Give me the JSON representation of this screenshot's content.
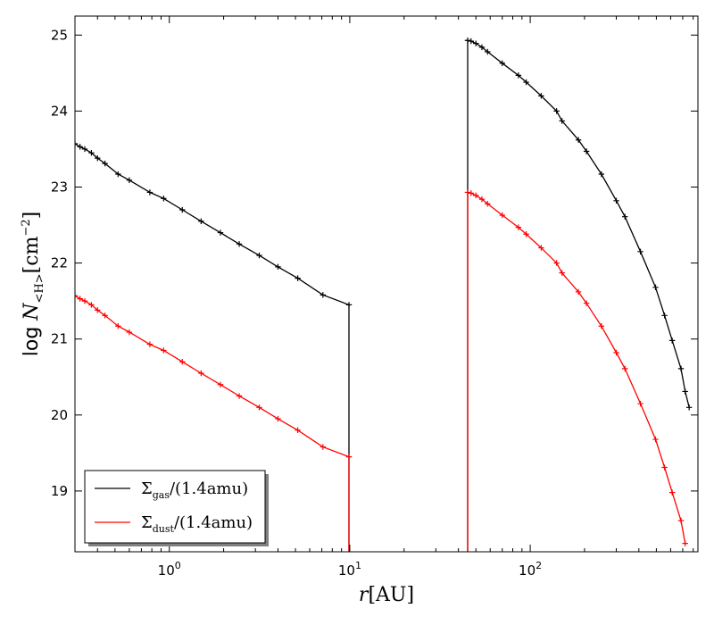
{
  "chart_data": {
    "type": "line",
    "title": "",
    "xlabel": "r[AU]",
    "ylabel": "log N<H>[cm^-2]",
    "xscale": "log",
    "xlim": [
      0.3,
      850
    ],
    "ylim": [
      18.2,
      25.25
    ],
    "x_ticks": [
      1,
      10,
      100
    ],
    "x_tick_labels": [
      "10^0",
      "10^1",
      "10^2"
    ],
    "y_ticks": [
      19,
      20,
      21,
      22,
      23,
      24,
      25
    ],
    "y_tick_labels": [
      "19",
      "20",
      "21",
      "22",
      "23",
      "24",
      "25"
    ],
    "grid": false,
    "legend_position": "bottom-left",
    "series": [
      {
        "name": "Σgas/(1.4amu)",
        "color": "#000000",
        "segments": [
          {
            "x": [
              0.3,
              0.32,
              0.34,
              0.37,
              0.4,
              0.44,
              0.52,
              0.6,
              0.78,
              0.93,
              1.18,
              1.5,
              1.92,
              2.44,
              3.15,
              4.0,
              5.15,
              7.1,
              9.9,
              9.9
            ],
            "y": [
              23.57,
              23.53,
              23.5,
              23.45,
              23.38,
              23.31,
              23.17,
              23.09,
              22.93,
              22.85,
              22.7,
              22.55,
              22.4,
              22.25,
              22.1,
              21.95,
              21.8,
              21.58,
              21.45,
              18.2
            ]
          },
          {
            "x": [
              45,
              45,
              47,
              50,
              54,
              58,
              70,
              86,
              95,
              115,
              140,
              150,
              185,
              205,
              248,
              300,
              335,
              408,
              495,
              555,
              612,
              685,
              722,
              760
            ],
            "y": [
              18.2,
              24.93,
              24.92,
              24.89,
              24.84,
              24.78,
              24.63,
              24.47,
              24.38,
              24.2,
              24.0,
              23.87,
              23.62,
              23.47,
              23.17,
              22.82,
              22.61,
              22.15,
              21.68,
              21.31,
              20.98,
              20.61,
              20.31,
              20.1
            ]
          }
        ]
      },
      {
        "name": "Σdust/(1.4amu)",
        "color": "#ff0000",
        "segments": [
          {
            "x": [
              0.3,
              0.32,
              0.34,
              0.37,
              0.4,
              0.44,
              0.52,
              0.6,
              0.78,
              0.93,
              1.18,
              1.5,
              1.92,
              2.44,
              3.15,
              4.0,
              5.15,
              7.1,
              9.9,
              9.9
            ],
            "y": [
              21.57,
              21.53,
              21.5,
              21.45,
              21.38,
              21.31,
              21.17,
              21.09,
              20.93,
              20.85,
              20.7,
              20.55,
              20.4,
              20.25,
              20.1,
              19.95,
              19.8,
              19.58,
              19.45,
              18.2
            ]
          },
          {
            "x": [
              45,
              45,
              47,
              50,
              54,
              58,
              70,
              86,
              95,
              115,
              140,
              150,
              185,
              205,
              248,
              300,
              335,
              408,
              495,
              555,
              612,
              685,
              722
            ],
            "y": [
              18.2,
              22.93,
              22.92,
              22.89,
              22.84,
              22.78,
              22.63,
              22.47,
              22.38,
              22.2,
              22.0,
              21.87,
              21.62,
              21.47,
              21.17,
              20.82,
              20.61,
              20.15,
              19.68,
              19.31,
              18.98,
              18.61,
              18.31
            ]
          }
        ]
      }
    ]
  },
  "legend": {
    "items": [
      {
        "symbol": "Σ",
        "sub": "gas",
        "rest": "/(1.4amu)",
        "color": "#000000"
      },
      {
        "symbol": "Σ",
        "sub": "dust",
        "rest": "/(1.4amu)",
        "color": "#ff0000"
      }
    ]
  }
}
